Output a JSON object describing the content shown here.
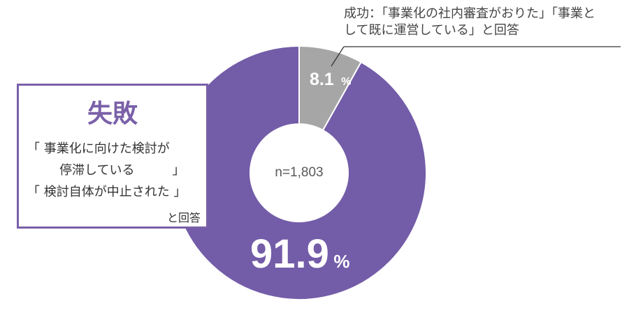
{
  "chart_data": {
    "type": "pie",
    "variant": "donut",
    "n_label": "n=1,803",
    "slices": [
      {
        "key": "success",
        "value": 8.1,
        "value_text": "8.1",
        "unit": "%",
        "color": "#a6a6a6",
        "annotation": [
          "成功：「事業化の社内審査がおりた」「事業と",
          "して既に運営している」と回答"
        ]
      },
      {
        "key": "failure",
        "value": 91.9,
        "value_text": "91.9",
        "unit": "%",
        "color": "#735ca8"
      }
    ]
  },
  "failure_box": {
    "title": "失敗",
    "lines": [
      "「 事業化に向けた検討が",
      "停滞している　　　」",
      "「 検討自体が中止された 」",
      "と回答"
    ]
  }
}
